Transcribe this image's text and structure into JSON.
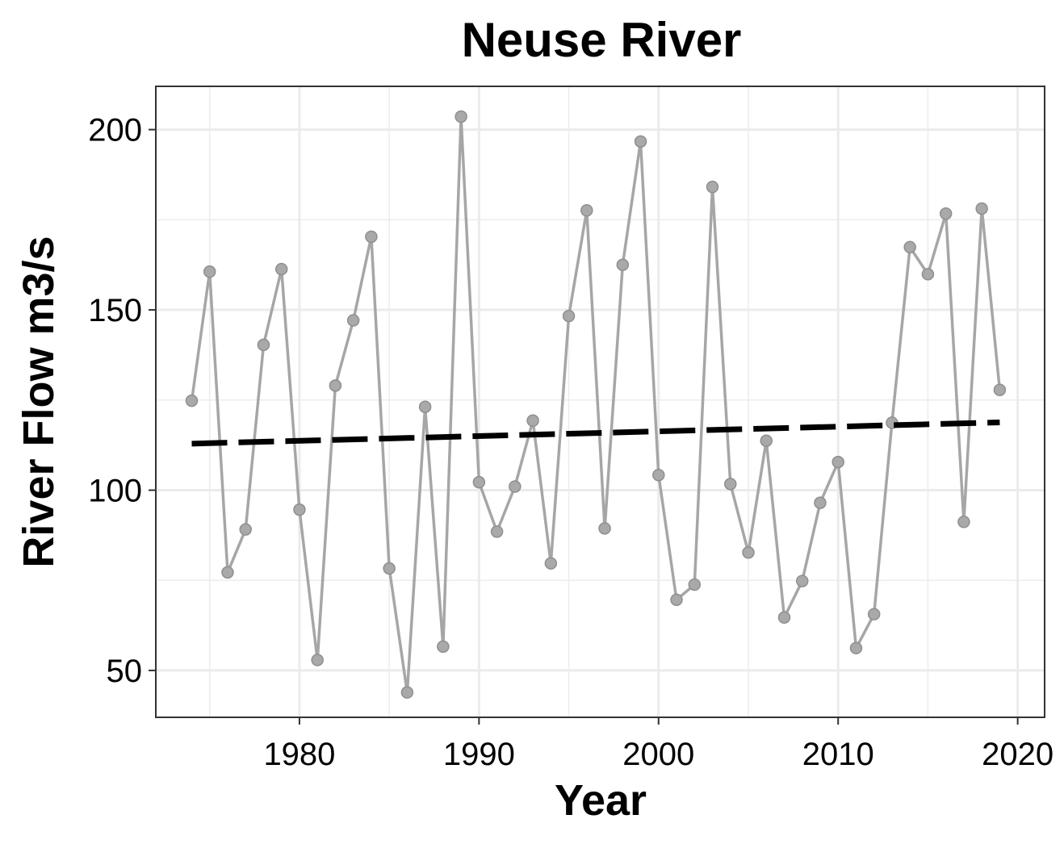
{
  "chart_data": {
    "type": "line",
    "title": "Neuse River",
    "xlabel": "Year",
    "ylabel": "River Flow m3/s",
    "xlim": [
      1972,
      2021.5
    ],
    "ylim": [
      37,
      212
    ],
    "grid": true,
    "x_ticks": [
      1980,
      1990,
      2000,
      2010,
      2020
    ],
    "x_tick_labels": [
      "1980",
      "1990",
      "2000",
      "2010",
      "2020"
    ],
    "y_ticks": [
      50,
      100,
      150,
      200
    ],
    "y_tick_labels": [
      "50",
      "100",
      "150",
      "200"
    ],
    "series": [
      {
        "style": "grey line with points",
        "color": "#a6a6a6",
        "x": [
          1974,
          1975,
          1976,
          1977,
          1978,
          1979,
          1980,
          1981,
          1982,
          1983,
          1984,
          1985,
          1986,
          1987,
          1988,
          1989,
          1990,
          1991,
          1992,
          1993,
          1994,
          1995,
          1996,
          1997,
          1998,
          1999,
          2000,
          2001,
          2002,
          2003,
          2004,
          2005,
          2006,
          2007,
          2008,
          2009,
          2010,
          2011,
          2012,
          2013,
          2014,
          2015,
          2016,
          2017,
          2018,
          2019
        ],
        "y": [
          124.8,
          160.6,
          77.2,
          89.1,
          140.3,
          161.3,
          94.6,
          52.9,
          129.0,
          147.1,
          170.3,
          78.3,
          43.9,
          123.1,
          56.6,
          203.6,
          102.2,
          88.5,
          101.0,
          119.3,
          79.7,
          148.3,
          177.6,
          89.4,
          162.5,
          196.7,
          104.2,
          69.6,
          73.8,
          184.1,
          101.7,
          82.7,
          113.7,
          64.7,
          74.8,
          96.5,
          107.8,
          56.2,
          65.6,
          118.7,
          167.4,
          159.9,
          176.7,
          91.2,
          178.1,
          127.8
        ]
      },
      {
        "style": "linear trend, dashed black",
        "color": "#000000",
        "x": [
          1974,
          2019
        ],
        "y": [
          112.9,
          118.8
        ]
      }
    ]
  }
}
